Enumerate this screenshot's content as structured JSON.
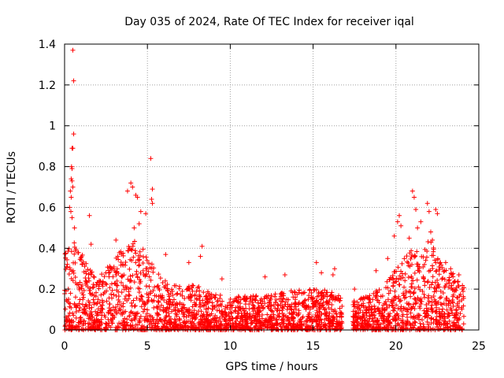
{
  "colors": {
    "marker": "#ff0000",
    "grid": "#a0a0a0",
    "axis": "#000000",
    "background": "#ffffff"
  },
  "chart_data": {
    "type": "scatter",
    "title": "Day 035 of 2024, Rate Of TEC Index for receiver iqal",
    "xlabel": "GPS time / hours",
    "ylabel": "ROTI / TECUs",
    "xlim": [
      0,
      25
    ],
    "ylim": [
      0,
      1.4
    ],
    "x_ticks": [
      0,
      5,
      10,
      15,
      20,
      25
    ],
    "x_tick_labels": [
      "0",
      "5",
      "10",
      "15",
      "20",
      "25"
    ],
    "y_ticks": [
      0,
      0.2,
      0.4,
      0.6,
      0.8,
      1,
      1.2,
      1.4
    ],
    "y_tick_labels": [
      "0",
      "0.2",
      "0.4",
      "0.6",
      "0.8",
      "1",
      "1.2",
      "1.4"
    ],
    "grid": true,
    "marker": "+",
    "series_name": "ROTI",
    "data_gap_hours": [
      16.75,
      17.4
    ],
    "background_envelope": {
      "x": [
        0,
        0.5,
        1,
        1.5,
        2,
        3,
        4,
        5,
        6,
        7,
        8,
        9,
        10,
        11,
        12,
        13,
        14,
        15,
        16,
        16.75,
        17.4,
        18,
        19,
        20,
        21,
        22,
        23,
        24.1
      ],
      "y_max": [
        0.4,
        0.45,
        0.38,
        0.3,
        0.25,
        0.35,
        0.45,
        0.38,
        0.25,
        0.22,
        0.22,
        0.18,
        0.16,
        0.17,
        0.17,
        0.18,
        0.2,
        0.2,
        0.2,
        0.16,
        0.15,
        0.16,
        0.2,
        0.3,
        0.4,
        0.45,
        0.3,
        0.25
      ]
    },
    "notable_points": [
      {
        "x": 0.5,
        "y": 1.37
      },
      {
        "x": 0.55,
        "y": 1.22
      },
      {
        "x": 0.55,
        "y": 0.96
      },
      {
        "x": 0.45,
        "y": 0.89
      },
      {
        "x": 0.5,
        "y": 0.89
      },
      {
        "x": 0.42,
        "y": 0.8
      },
      {
        "x": 0.45,
        "y": 0.79
      },
      {
        "x": 0.4,
        "y": 0.74
      },
      {
        "x": 0.45,
        "y": 0.73
      },
      {
        "x": 0.5,
        "y": 0.7
      },
      {
        "x": 0.35,
        "y": 0.68
      },
      {
        "x": 0.4,
        "y": 0.65
      },
      {
        "x": 0.38,
        "y": 0.58
      },
      {
        "x": 0.45,
        "y": 0.55
      },
      {
        "x": 0.3,
        "y": 0.6
      },
      {
        "x": 0.6,
        "y": 0.5
      },
      {
        "x": 1.5,
        "y": 0.56
      },
      {
        "x": 1.6,
        "y": 0.42
      },
      {
        "x": 3.1,
        "y": 0.44
      },
      {
        "x": 3.8,
        "y": 0.68
      },
      {
        "x": 4.0,
        "y": 0.72
      },
      {
        "x": 4.1,
        "y": 0.7
      },
      {
        "x": 4.3,
        "y": 0.66
      },
      {
        "x": 4.4,
        "y": 0.65
      },
      {
        "x": 4.6,
        "y": 0.58
      },
      {
        "x": 4.9,
        "y": 0.57
      },
      {
        "x": 5.2,
        "y": 0.84
      },
      {
        "x": 5.3,
        "y": 0.69
      },
      {
        "x": 5.25,
        "y": 0.64
      },
      {
        "x": 5.3,
        "y": 0.62
      },
      {
        "x": 4.5,
        "y": 0.52
      },
      {
        "x": 4.2,
        "y": 0.5
      },
      {
        "x": 6.1,
        "y": 0.37
      },
      {
        "x": 7.5,
        "y": 0.33
      },
      {
        "x": 8.3,
        "y": 0.41
      },
      {
        "x": 8.2,
        "y": 0.36
      },
      {
        "x": 9.5,
        "y": 0.25
      },
      {
        "x": 12.1,
        "y": 0.26
      },
      {
        "x": 13.3,
        "y": 0.27
      },
      {
        "x": 15.2,
        "y": 0.33
      },
      {
        "x": 15.5,
        "y": 0.28
      },
      {
        "x": 16.3,
        "y": 0.3
      },
      {
        "x": 16.2,
        "y": 0.27
      },
      {
        "x": 17.5,
        "y": 0.2
      },
      {
        "x": 18.8,
        "y": 0.29
      },
      {
        "x": 19.5,
        "y": 0.35
      },
      {
        "x": 19.9,
        "y": 0.46
      },
      {
        "x": 20.1,
        "y": 0.53
      },
      {
        "x": 20.2,
        "y": 0.56
      },
      {
        "x": 20.3,
        "y": 0.51
      },
      {
        "x": 20.8,
        "y": 0.45
      },
      {
        "x": 21.0,
        "y": 0.68
      },
      {
        "x": 21.1,
        "y": 0.65
      },
      {
        "x": 21.2,
        "y": 0.59
      },
      {
        "x": 21.3,
        "y": 0.5
      },
      {
        "x": 21.5,
        "y": 0.53
      },
      {
        "x": 21.9,
        "y": 0.62
      },
      {
        "x": 22.0,
        "y": 0.58
      },
      {
        "x": 22.1,
        "y": 0.48
      },
      {
        "x": 22.4,
        "y": 0.59
      },
      {
        "x": 22.5,
        "y": 0.57
      },
      {
        "x": 22.2,
        "y": 0.44
      },
      {
        "x": 23.0,
        "y": 0.33
      },
      {
        "x": 23.3,
        "y": 0.3
      },
      {
        "x": 23.8,
        "y": 0.27
      },
      {
        "x": 24.0,
        "y": 0.2
      }
    ]
  }
}
